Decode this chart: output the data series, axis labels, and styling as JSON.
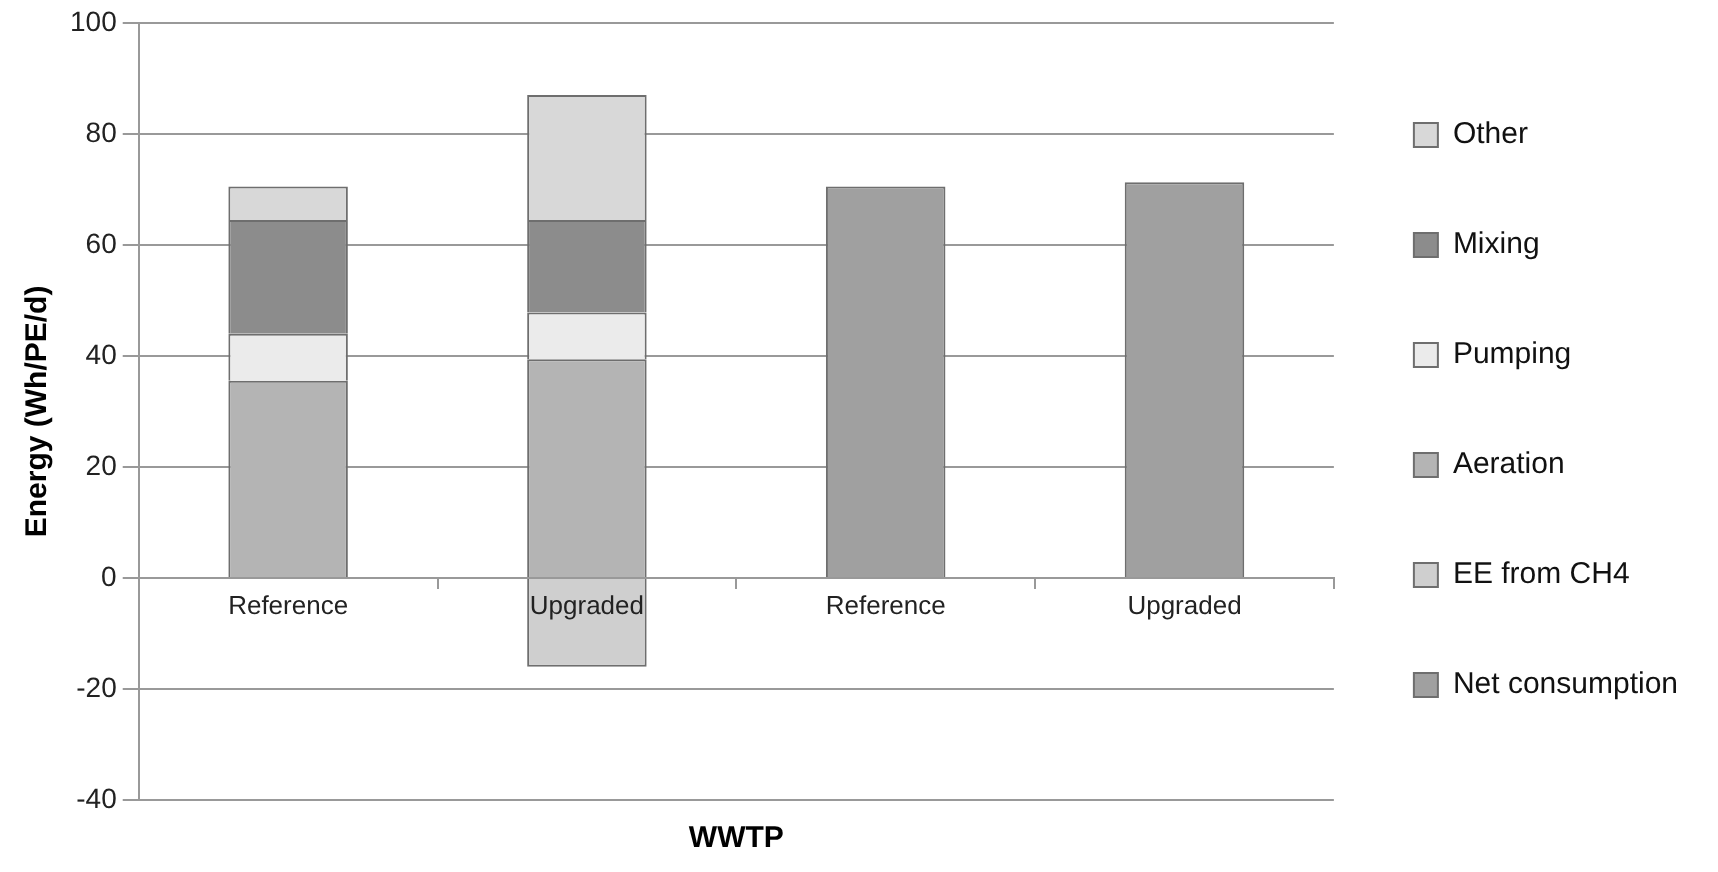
{
  "chart_data": {
    "type": "bar",
    "stacked": true,
    "xlabel": "WWTP",
    "ylabel": "Energy (Wh/PE/d)",
    "categories": [
      "Reference",
      "Upgraded",
      "Reference",
      "Upgraded"
    ],
    "series": [
      {
        "name": "Net consumption",
        "color": "#a0a0a0",
        "values": [
          null,
          null,
          70.5,
          71.3
        ]
      },
      {
        "name": "EE from CH4",
        "color": "#cfcfcf",
        "values": [
          null,
          -16,
          null,
          null
        ]
      },
      {
        "name": "Aeration",
        "color": "#b4b4b4",
        "values": [
          35.5,
          39.4,
          null,
          null
        ]
      },
      {
        "name": "Pumping",
        "color": "#ebebeb",
        "values": [
          8.5,
          8.4,
          null,
          null
        ]
      },
      {
        "name": "Mixing",
        "color": "#8c8c8c",
        "values": [
          20.5,
          16.7,
          null,
          null
        ]
      },
      {
        "name": "Other",
        "color": "#d8d8d8",
        "values": [
          6,
          22.5,
          null,
          null
        ]
      }
    ],
    "ylim": [
      -40,
      100
    ],
    "yticks": [
      -40,
      -20,
      0,
      20,
      40,
      60,
      80,
      100
    ],
    "grid": "y",
    "legend": "right"
  }
}
